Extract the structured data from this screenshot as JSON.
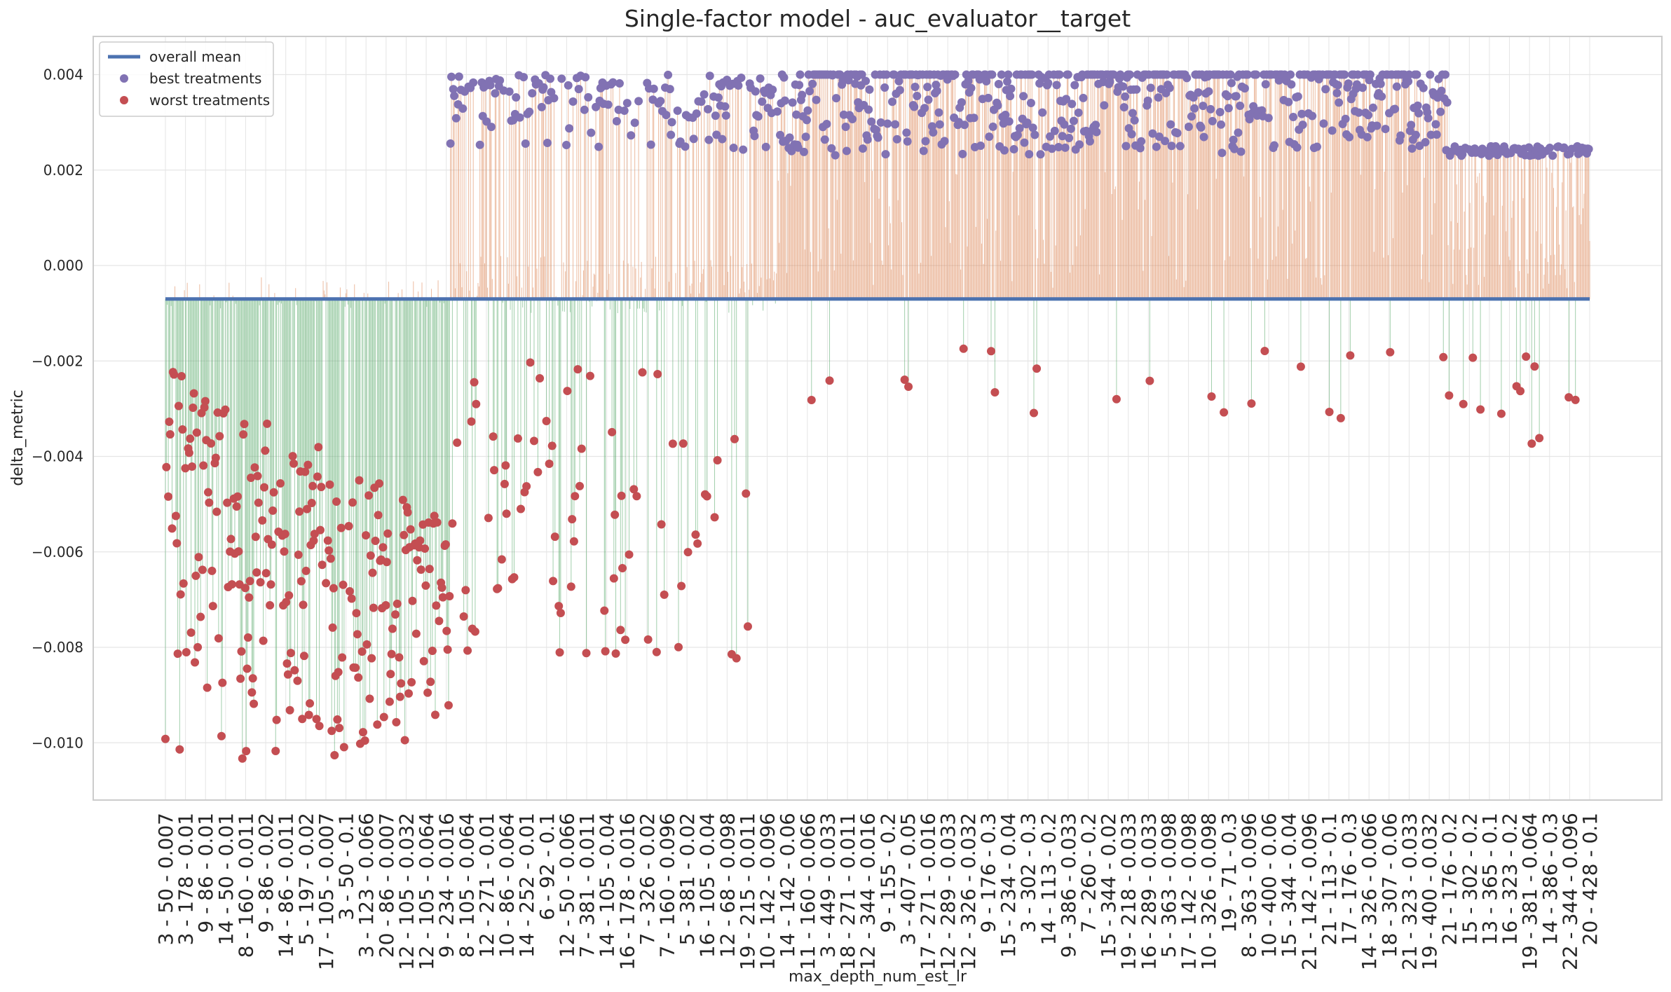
{
  "chart_data": {
    "type": "scatter",
    "title": "Single-factor model - auc_evaluator__target",
    "xlabel": "max_depth_num_est_lr",
    "ylabel": "delta_metric",
    "ylim": [
      -0.0112,
      0.0048
    ],
    "yticks": [
      -0.01,
      -0.008,
      -0.006,
      -0.004,
      -0.002,
      0.0,
      0.002,
      0.004
    ],
    "ytick_labels": [
      "−0.010",
      "−0.008",
      "−0.006",
      "−0.004",
      "−0.002",
      "0.000",
      "0.002",
      "0.004"
    ],
    "grid": true,
    "legend_position": "top-left",
    "overall_mean": -0.0007,
    "n_treatments": 1500,
    "categories": [
      "3 - 50 - 0.007",
      "3 - 178 - 0.01",
      "9 - 86 - 0.01",
      "14 - 50 - 0.01",
      "8 - 160 - 0.011",
      "9 - 86 - 0.02",
      "14 - 86 - 0.011",
      "5 - 197 - 0.02",
      "17 - 105 - 0.007",
      "3 - 50 - 0.1",
      "3 - 123 - 0.066",
      "20 - 86 - 0.007",
      "12 - 105 - 0.032",
      "12 - 105 - 0.064",
      "9 - 234 - 0.016",
      "8 - 105 - 0.064",
      "12 - 271 - 0.01",
      "10 - 86 - 0.064",
      "14 - 252 - 0.01",
      "6 - 92 - 0.1",
      "12 - 50 - 0.066",
      "7 - 381 - 0.011",
      "14 - 105 - 0.04",
      "16 - 178 - 0.016",
      "7 - 326 - 0.02",
      "7 - 160 - 0.096",
      "5 - 381 - 0.02",
      "16 - 105 - 0.04",
      "12 - 68 - 0.098",
      "19 - 215 - 0.011",
      "10 - 142 - 0.096",
      "14 - 142 - 0.06",
      "11 - 160 - 0.066",
      "3 - 449 - 0.033",
      "18 - 271 - 0.011",
      "12 - 344 - 0.016",
      "9 - 155 - 0.2",
      "3 - 407 - 0.05",
      "17 - 271 - 0.016",
      "12 - 289 - 0.033",
      "12 - 326 - 0.032",
      "9 - 176 - 0.3",
      "15 - 234 - 0.04",
      "3 - 302 - 0.3",
      "14 - 113 - 0.2",
      "9 - 386 - 0.033",
      "7 - 260 - 0.2",
      "15 - 344 - 0.02",
      "19 - 218 - 0.033",
      "16 - 289 - 0.033",
      "5 - 363 - 0.098",
      "17 - 142 - 0.098",
      "10 - 326 - 0.098",
      "19 - 71 - 0.3",
      "8 - 363 - 0.096",
      "10 - 400 - 0.06",
      "15 - 344 - 0.04",
      "21 - 142 - 0.096",
      "21 - 113 - 0.1",
      "17 - 176 - 0.3",
      "14 - 326 - 0.066",
      "18 - 307 - 0.06",
      "21 - 323 - 0.033",
      "19 - 400 - 0.032",
      "21 - 176 - 0.2",
      "15 - 302 - 0.2",
      "13 - 365 - 0.1",
      "16 - 323 - 0.2",
      "19 - 381 - 0.064",
      "14 - 386 - 0.3",
      "22 - 344 - 0.096",
      "20 - 428 - 0.1"
    ],
    "series": [
      {
        "name": "overall mean",
        "kind": "line",
        "color": "#4c72b0"
      },
      {
        "name": "best treatments",
        "kind": "scatter",
        "color": "#8172b3",
        "value_range": [
          0.0023,
          0.004
        ],
        "cap_value": 0.004
      },
      {
        "name": "worst treatments",
        "kind": "scatter",
        "color": "#c44e52",
        "value_range": [
          -0.0104,
          -0.0017
        ],
        "floor_value": -0.0104
      }
    ],
    "stem_colors": {
      "positive": "#dd8452",
      "negative": "#55a868"
    },
    "colors": {
      "grid": "#e5e5e5",
      "frame": "#cccccc",
      "text": "#262626"
    }
  }
}
